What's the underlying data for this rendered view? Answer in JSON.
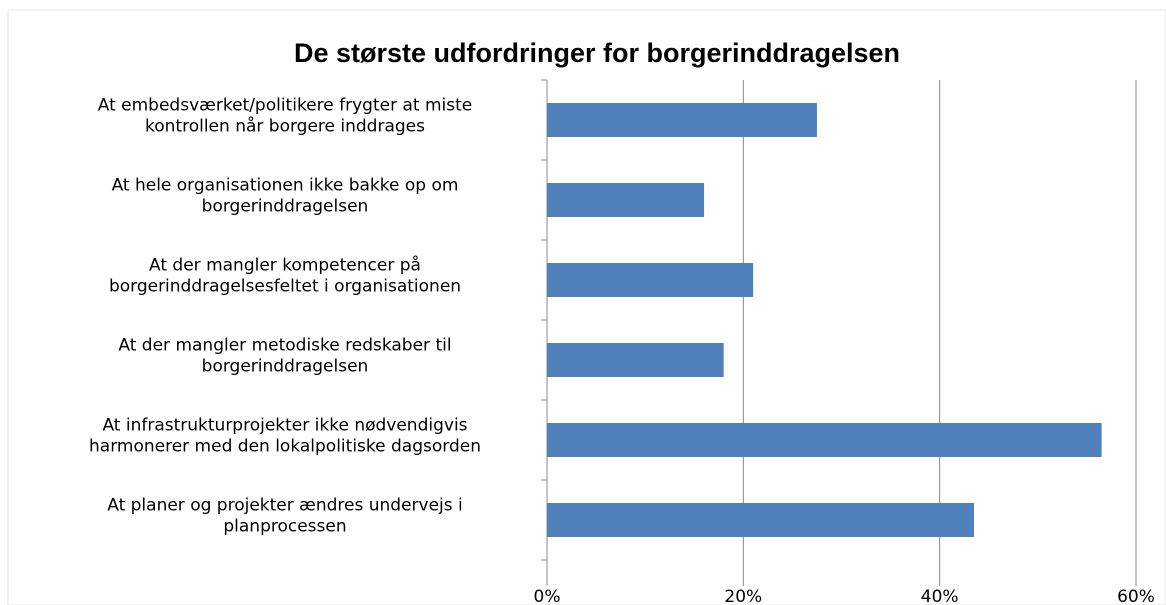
{
  "chart_data": {
    "type": "barh",
    "title": "De største udfordringer for borgerinddragelsen",
    "categories": [
      [
        "At embedsværket/politikere frygter at miste",
        "kontrollen når borgere inddrages"
      ],
      [
        "At hele organisationen ikke bakke op om",
        "borgerinddragelsen"
      ],
      [
        "At der mangler kompetencer på",
        "borgerinddragelsesfeltet i organisationen"
      ],
      [
        "At der mangler metodiske redskaber til",
        "borgerinddragelsen"
      ],
      [
        "At infrastrukturprojekter ikke nødvendigvis",
        "harmonerer med den lokalpolitiske dagsorden"
      ],
      [
        "At planer og projekter ændres undervejs i",
        "planprocessen"
      ]
    ],
    "values": [
      27.5,
      16,
      21,
      18,
      56.5,
      43.5
    ],
    "color": "#4f81bd",
    "xlim": [
      0,
      60
    ],
    "xticks": [
      {
        "value": 0,
        "label": "0%"
      },
      {
        "value": 20,
        "label": "20%"
      },
      {
        "value": 40,
        "label": "40%"
      },
      {
        "value": 60,
        "label": "60%"
      }
    ],
    "grid": true
  }
}
